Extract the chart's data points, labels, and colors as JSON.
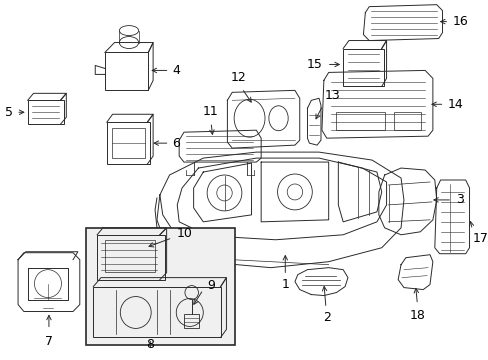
{
  "bg": "#ffffff",
  "lc": "#2a2a2a",
  "tc": "#000000",
  "lw": 0.7,
  "fig_w": 4.89,
  "fig_h": 3.6,
  "dpi": 100
}
